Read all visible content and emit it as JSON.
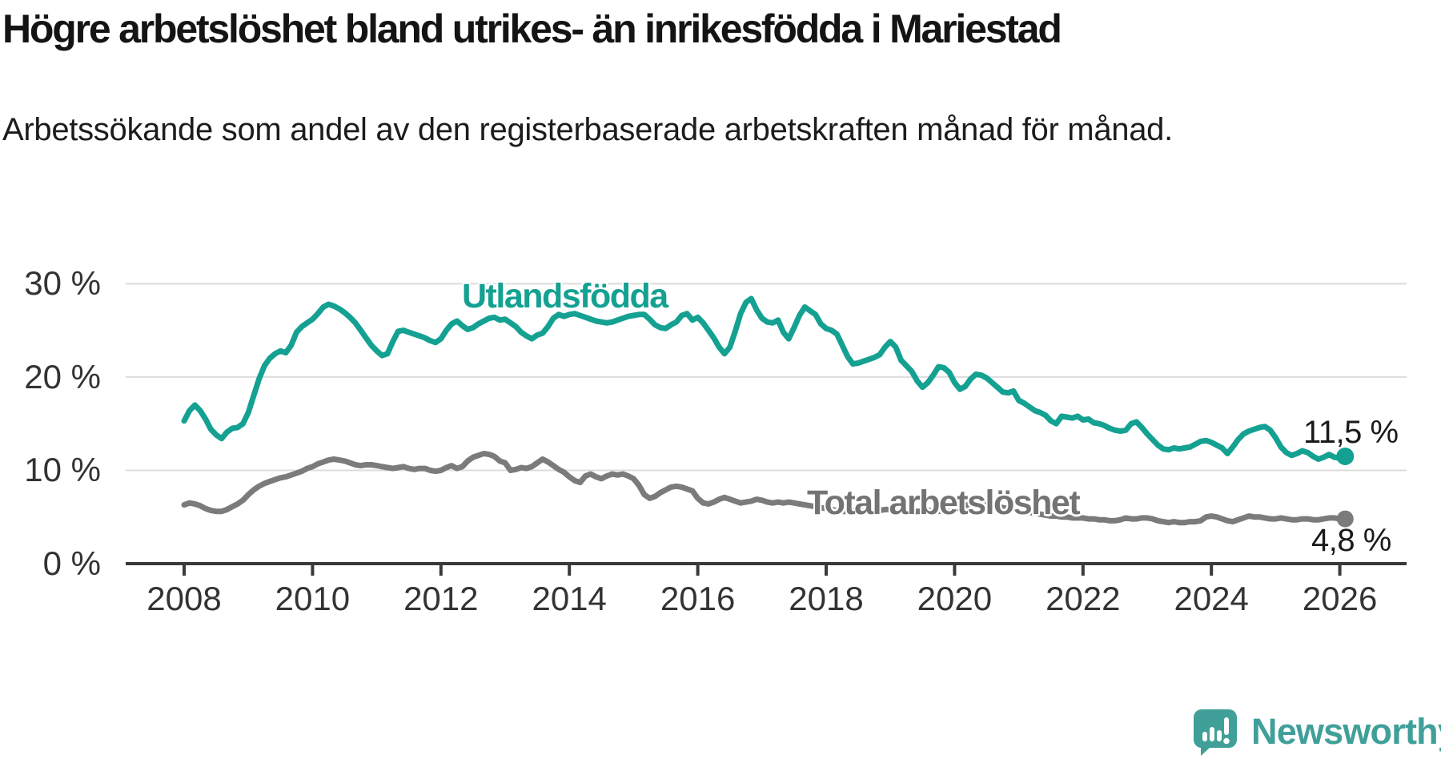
{
  "header": {
    "title": "Högre arbetslöshet bland utrikes- än inrikesfödda i Mariestad",
    "subtitle": "Arbetssökande som andel av den registerbaserade arbetskraften månad för månad."
  },
  "chart_data": {
    "type": "line",
    "title": "Högre arbetslöshet bland utrikes- än inrikesfödda i Mariestad",
    "xlabel": "",
    "ylabel": "Arbetssökande som andel av den registerbaserade arbetskraften",
    "x_start_year": 2008,
    "x_interval": "monthly",
    "x_end": "2026-02",
    "xlim": [
      2007.1,
      2027.05
    ],
    "ylim": [
      0,
      31.5
    ],
    "grid": "horizontal",
    "legend": "inline-labels",
    "x_ticks": [
      2008,
      2010,
      2012,
      2014,
      2016,
      2018,
      2020,
      2022,
      2024,
      2026
    ],
    "y_ticks": [
      {
        "label": "30 %",
        "value": 30
      },
      {
        "label": "20 %",
        "value": 20
      },
      {
        "label": "10 %",
        "value": 10
      },
      {
        "label": "0 %",
        "value": 0
      }
    ],
    "series": [
      {
        "name": "Utlandsfödda",
        "color": "#14a192",
        "end_label": "11,5 %",
        "last_value": 11.5,
        "end_dot_radius": 11,
        "values": [
          15.3,
          16.4,
          17.0,
          16.4,
          15.5,
          14.4,
          13.8,
          13.4,
          14.1,
          14.5,
          14.6,
          15.0,
          16.2,
          18.0,
          19.8,
          21.2,
          22.0,
          22.5,
          22.8,
          22.6,
          23.4,
          24.8,
          25.4,
          25.8,
          26.2,
          26.8,
          27.5,
          27.8,
          27.6,
          27.3,
          26.9,
          26.4,
          25.8,
          25.0,
          24.2,
          23.4,
          22.8,
          22.3,
          22.5,
          23.8,
          24.9,
          25.0,
          24.8,
          24.6,
          24.4,
          24.2,
          23.9,
          23.7,
          24.1,
          25.0,
          25.7,
          26.0,
          25.5,
          25.1,
          25.3,
          25.7,
          26.0,
          26.3,
          26.4,
          26.1,
          26.2,
          25.8,
          25.4,
          24.8,
          24.4,
          24.1,
          24.5,
          24.7,
          25.4,
          26.3,
          26.7,
          26.5,
          26.7,
          26.8,
          26.6,
          26.4,
          26.2,
          26.0,
          25.9,
          25.8,
          25.9,
          26.1,
          26.3,
          26.5,
          26.6,
          26.7,
          26.7,
          26.2,
          25.6,
          25.3,
          25.2,
          25.6,
          25.9,
          26.6,
          26.8,
          26.1,
          26.4,
          25.8,
          25.0,
          24.2,
          23.2,
          22.5,
          23.2,
          24.9,
          26.8,
          28.0,
          28.4,
          27.2,
          26.3,
          25.9,
          25.8,
          26.1,
          24.8,
          24.1,
          25.3,
          26.6,
          27.5,
          27.1,
          26.7,
          25.7,
          25.2,
          25.0,
          24.6,
          23.4,
          22.2,
          21.4,
          21.5,
          21.7,
          21.9,
          22.1,
          22.4,
          23.2,
          23.8,
          23.2,
          21.8,
          21.2,
          20.6,
          19.6,
          18.9,
          19.4,
          20.2,
          21.1,
          21.0,
          20.5,
          19.4,
          18.7,
          19.0,
          19.8,
          20.3,
          20.2,
          19.9,
          19.4,
          18.9,
          18.4,
          18.3,
          18.5,
          17.5,
          17.2,
          16.8,
          16.4,
          16.2,
          15.9,
          15.3,
          15.0,
          15.8,
          15.7,
          15.6,
          15.8,
          15.4,
          15.5,
          15.1,
          15.0,
          14.8,
          14.5,
          14.3,
          14.2,
          14.3,
          15.0,
          15.2,
          14.6,
          13.9,
          13.3,
          12.7,
          12.3,
          12.2,
          12.4,
          12.3,
          12.4,
          12.5,
          12.8,
          13.1,
          13.2,
          13.0,
          12.7,
          12.4,
          11.8,
          12.5,
          13.3,
          13.9,
          14.2,
          14.4,
          14.6,
          14.7,
          14.3,
          13.5,
          12.5,
          11.9,
          11.6,
          11.8,
          12.1,
          11.9,
          11.5,
          11.2,
          11.4,
          11.7,
          11.4,
          11.3,
          11.5
        ]
      },
      {
        "name": "Total arbetslöshet",
        "color": "#7b7b7b",
        "end_label": "4,8 %",
        "last_value": 4.8,
        "end_dot_radius": 10.5,
        "values": [
          6.3,
          6.5,
          6.4,
          6.2,
          5.9,
          5.7,
          5.6,
          5.6,
          5.8,
          6.1,
          6.4,
          6.8,
          7.4,
          7.9,
          8.3,
          8.6,
          8.8,
          9.0,
          9.2,
          9.3,
          9.5,
          9.7,
          9.9,
          10.2,
          10.4,
          10.7,
          10.9,
          11.1,
          11.2,
          11.1,
          11.0,
          10.8,
          10.6,
          10.5,
          10.6,
          10.6,
          10.5,
          10.4,
          10.3,
          10.2,
          10.3,
          10.4,
          10.2,
          10.1,
          10.2,
          10.2,
          10.0,
          9.9,
          10.0,
          10.3,
          10.5,
          10.2,
          10.4,
          11.0,
          11.4,
          11.6,
          11.8,
          11.7,
          11.5,
          11.0,
          10.8,
          10.0,
          10.1,
          10.3,
          10.2,
          10.4,
          10.8,
          11.2,
          10.9,
          10.5,
          10.1,
          9.8,
          9.3,
          8.9,
          8.7,
          9.4,
          9.6,
          9.3,
          9.1,
          9.4,
          9.6,
          9.5,
          9.6,
          9.4,
          9.1,
          8.4,
          7.4,
          7.0,
          7.2,
          7.6,
          7.9,
          8.2,
          8.3,
          8.2,
          8.0,
          7.8,
          7.0,
          6.5,
          6.4,
          6.6,
          6.9,
          7.1,
          6.9,
          6.7,
          6.5,
          6.6,
          6.7,
          6.9,
          6.8,
          6.6,
          6.5,
          6.6,
          6.5,
          6.6,
          6.5,
          6.4,
          6.3,
          6.2,
          6.1,
          6.0,
          5.9,
          5.8,
          5.7,
          5.6,
          5.6,
          5.7,
          5.7,
          5.8,
          5.8,
          5.7,
          5.7,
          5.8,
          5.8,
          5.7,
          5.6,
          5.5,
          5.5,
          5.6,
          5.6,
          5.7,
          5.7,
          5.6,
          5.7,
          5.8,
          5.9,
          6.0,
          6.2,
          6.4,
          6.5,
          6.4,
          6.3,
          6.2,
          6.1,
          6.0,
          5.9,
          5.8,
          5.7,
          5.6,
          5.5,
          5.4,
          5.3,
          5.2,
          5.1,
          5.1,
          5.0,
          5.0,
          4.9,
          4.9,
          4.9,
          4.8,
          4.8,
          4.7,
          4.7,
          4.6,
          4.6,
          4.7,
          4.9,
          4.8,
          4.8,
          4.9,
          4.9,
          4.8,
          4.6,
          4.5,
          4.4,
          4.5,
          4.4,
          4.4,
          4.5,
          4.5,
          4.6,
          5.0,
          5.1,
          5.0,
          4.8,
          4.6,
          4.5,
          4.7,
          4.9,
          5.1,
          5.0,
          5.0,
          4.9,
          4.8,
          4.8,
          4.9,
          4.8,
          4.7,
          4.7,
          4.8,
          4.8,
          4.7,
          4.7,
          4.8,
          4.9,
          4.9,
          4.8,
          4.8
        ]
      }
    ],
    "colors": {
      "grid": "#dcdcdc",
      "axis": "#3a3a3a",
      "tick_text": "#333333"
    }
  },
  "footer": {
    "brand": "Newsworthy",
    "brand_color": "#40a099"
  }
}
